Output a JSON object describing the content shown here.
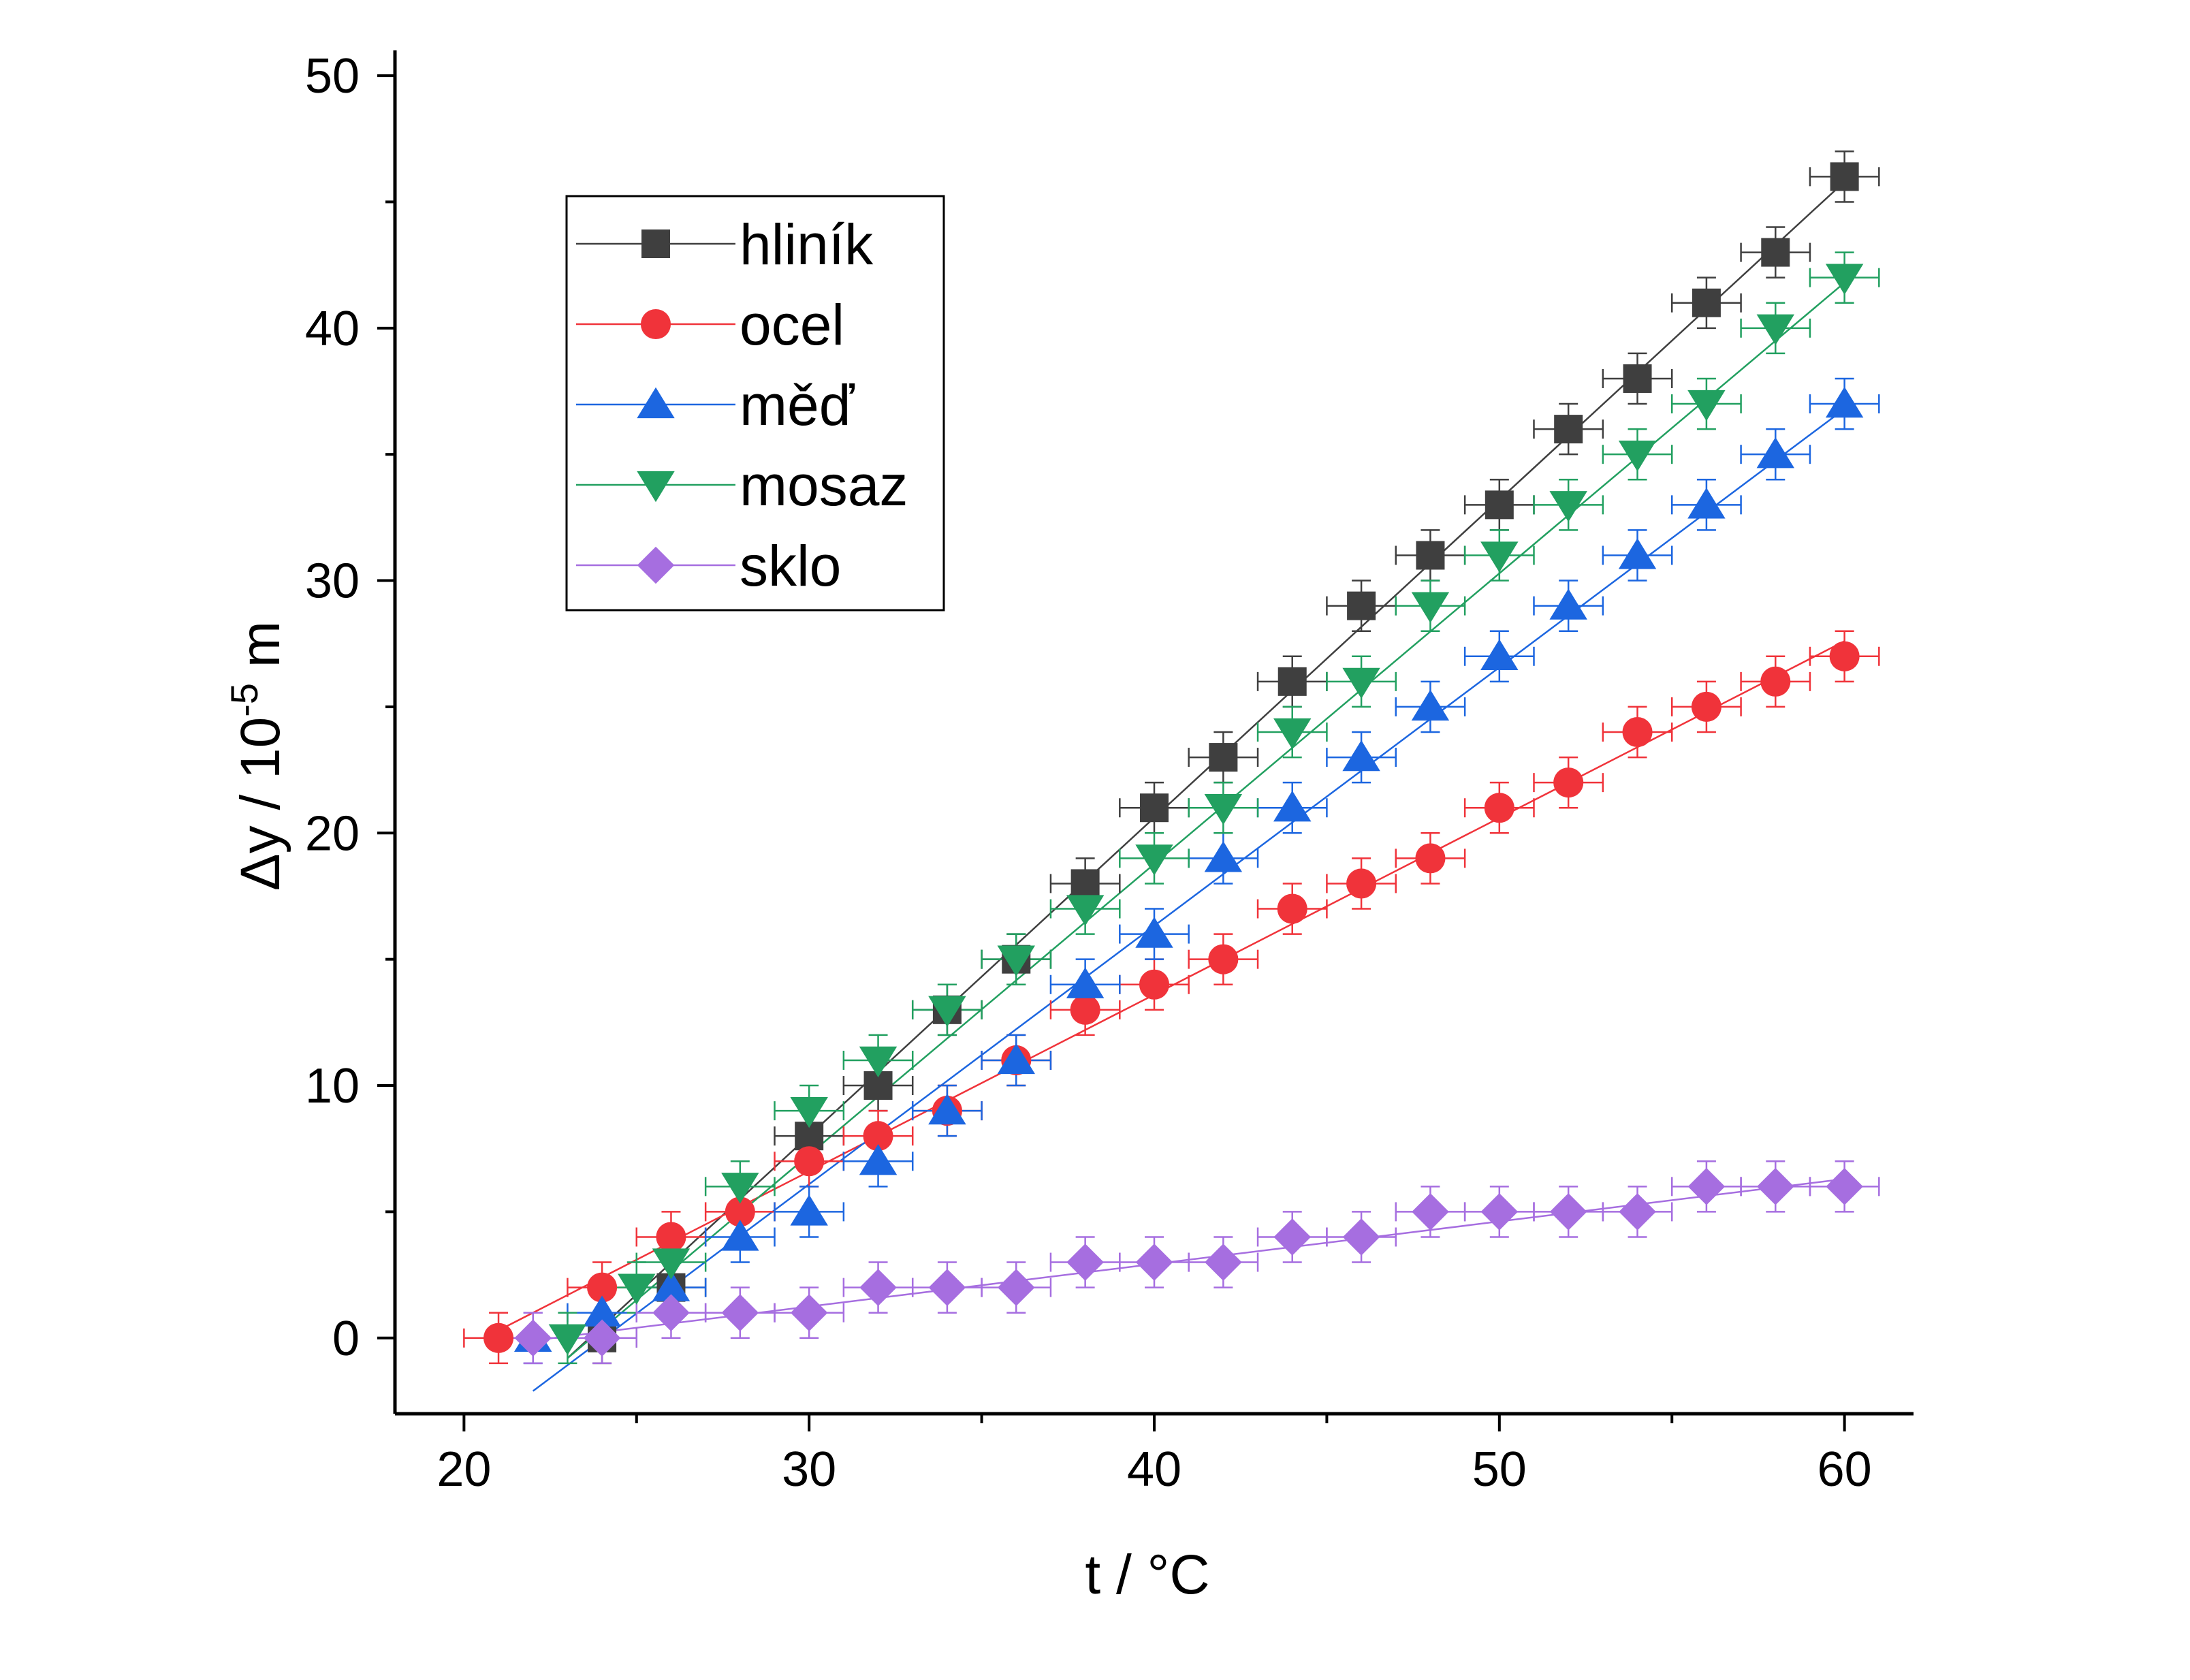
{
  "chart_data": {
    "type": "scatter",
    "title": "",
    "xlabel": "t / °C",
    "ylabel_parts": [
      "Δy / 10",
      "-5",
      " m"
    ],
    "xlim": [
      18,
      62
    ],
    "ylim": [
      -3,
      51
    ],
    "xticks": [
      20,
      30,
      40,
      50,
      60
    ],
    "yticks": [
      0,
      10,
      20,
      30,
      40,
      50
    ],
    "x_minor_step": 5,
    "y_minor_step": 5,
    "grid": false,
    "legend_position": "top-left",
    "error_x": 1,
    "error_y": 1,
    "series": [
      {
        "name": "hliník",
        "marker": "square",
        "color": "#3f3f3f",
        "x": [
          24,
          26,
          30,
          32,
          34,
          36,
          38,
          40,
          42,
          44,
          46,
          48,
          50,
          52,
          54,
          56,
          58,
          60
        ],
        "y": [
          0,
          2,
          8,
          10,
          13,
          15,
          18,
          21,
          23,
          26,
          29,
          31,
          33,
          36,
          38,
          41,
          43,
          46
        ],
        "fit": [
          [
            23,
            -0.8
          ],
          [
            60,
            45.8
          ]
        ]
      },
      {
        "name": "ocel",
        "marker": "circle",
        "color": "#f0333a",
        "x": [
          21,
          24,
          26,
          28,
          30,
          32,
          34,
          36,
          38,
          40,
          42,
          44,
          46,
          48,
          50,
          52,
          54,
          56,
          58,
          60
        ],
        "y": [
          0,
          2,
          4,
          5,
          7,
          8,
          9,
          11,
          13,
          14,
          15,
          17,
          18,
          19,
          21,
          22,
          24,
          25,
          26,
          27
        ],
        "fit": [
          [
            21,
            0.3
          ],
          [
            60,
            27.6
          ]
        ]
      },
      {
        "name": "měď",
        "marker": "triangle-up",
        "color": "#1c66e0",
        "x": [
          22,
          24,
          26,
          28,
          30,
          32,
          34,
          36,
          38,
          40,
          42,
          44,
          46,
          48,
          50,
          52,
          54,
          56,
          58,
          60
        ],
        "y": [
          0,
          1,
          2,
          4,
          5,
          7,
          9,
          11,
          14,
          16,
          19,
          21,
          23,
          25,
          27,
          29,
          31,
          33,
          35,
          37
        ],
        "fit": [
          [
            22,
            -2.1
          ],
          [
            60,
            36.8
          ]
        ]
      },
      {
        "name": "mosaz",
        "marker": "triangle-down",
        "color": "#22a060",
        "x": [
          23,
          25,
          26,
          28,
          30,
          32,
          34,
          36,
          38,
          40,
          42,
          44,
          46,
          48,
          50,
          52,
          54,
          56,
          58,
          60
        ],
        "y": [
          0,
          2,
          3,
          6,
          9,
          11,
          13,
          15,
          17,
          19,
          21,
          24,
          26,
          29,
          31,
          33,
          35,
          37,
          40,
          42
        ],
        "fit": [
          [
            23,
            -0.8
          ],
          [
            60,
            41.8
          ]
        ]
      },
      {
        "name": "sklo",
        "marker": "diamond",
        "color": "#a66ee0",
        "x": [
          22,
          24,
          26,
          28,
          30,
          32,
          34,
          36,
          38,
          40,
          42,
          44,
          46,
          48,
          50,
          52,
          54,
          56,
          58,
          60
        ],
        "y": [
          0,
          0,
          1,
          1,
          1,
          2,
          2,
          2,
          3,
          3,
          3,
          4,
          4,
          5,
          5,
          5,
          5,
          6,
          6,
          6
        ],
        "fit": [
          [
            22,
            -0.1
          ],
          [
            60,
            6.3
          ]
        ]
      }
    ]
  }
}
